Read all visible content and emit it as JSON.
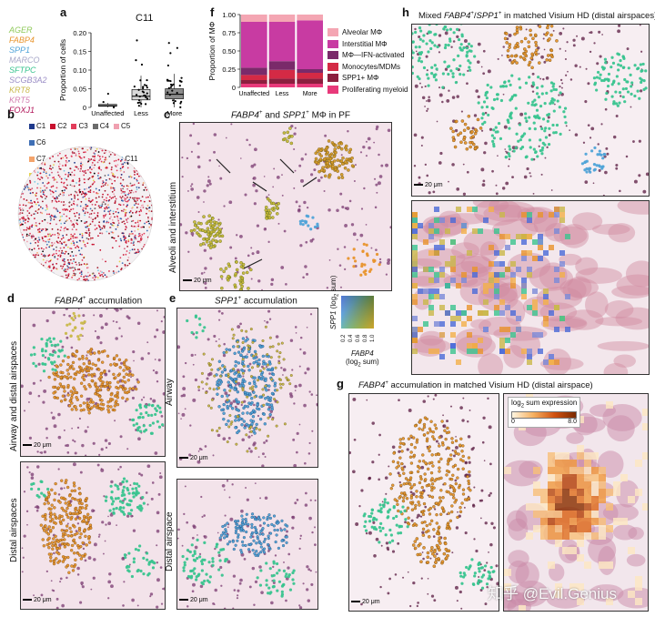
{
  "gene_legend": [
    {
      "name": "AGER",
      "color": "#8fc95a"
    },
    {
      "name": "FABP4",
      "color": "#e8942c"
    },
    {
      "name": "SPP1",
      "color": "#4fa3d8"
    },
    {
      "name": "MARCO",
      "color": "#a8a8c8"
    },
    {
      "name": "SFTPC",
      "color": "#39c48f"
    },
    {
      "name": "SCGB3A2",
      "color": "#9b8ec6"
    },
    {
      "name": "KRT8",
      "color": "#c9b84a"
    },
    {
      "name": "KRT5",
      "color": "#d37fb0"
    },
    {
      "name": "FOXJ1",
      "color": "#b2165a"
    }
  ],
  "panel_a": {
    "label": "a",
    "title": "C11",
    "ylabel": "Proportion of cells",
    "chart_data": {
      "type": "box",
      "categories": [
        "Unaffected",
        "Less",
        "More"
      ],
      "yticks": [
        "0",
        "0.05",
        "0.10",
        "0.15",
        "0.20"
      ],
      "ylim": [
        0,
        0.2
      ],
      "boxes": [
        {
          "category": "Unaffected",
          "q1": 0.003,
          "median": 0.005,
          "q3": 0.008,
          "lower": 0.0,
          "upper": 0.012,
          "color": "#ffffff"
        },
        {
          "category": "Less",
          "q1": 0.02,
          "median": 0.03,
          "q3": 0.048,
          "lower": 0.0,
          "upper": 0.085,
          "color": "#d9d9d9"
        },
        {
          "category": "More",
          "q1": 0.023,
          "median": 0.035,
          "q3": 0.05,
          "lower": 0.0,
          "upper": 0.09,
          "color": "#8c8c8c"
        }
      ]
    }
  },
  "panel_b": {
    "label": "b",
    "clusters": [
      {
        "name": "C1",
        "color": "#1f3a8c"
      },
      {
        "name": "C2",
        "color": "#c8102e"
      },
      {
        "name": "C3",
        "color": "#e23c5a"
      },
      {
        "name": "C4",
        "color": "#6b6b6b"
      },
      {
        "name": "C5",
        "color": "#f0a0b0"
      },
      {
        "name": "C6",
        "color": "#3f6fb5"
      },
      {
        "name": "C7",
        "color": "#f4a46b"
      },
      {
        "name": "C8",
        "color": "#a0182a"
      },
      {
        "name": "C9",
        "color": "#d45a7a"
      },
      {
        "name": "C10",
        "color": "#000000"
      },
      {
        "name": "C11",
        "color": "#7ec8e3"
      },
      {
        "name": "C12",
        "color": "#e8d44d"
      }
    ]
  },
  "panel_c": {
    "label": "c",
    "title_parts": [
      "FABP4",
      "+",
      " and ",
      "SPP1",
      "+",
      " MΦ in PF"
    ],
    "side": "Alveoli and interstitium",
    "scale": "20 μm"
  },
  "panel_d": {
    "label": "d",
    "title_parts": [
      "FABP4",
      "+",
      " accumulation"
    ],
    "side_top": "Airway and distal airspaces",
    "side_bottom": "Distal airspaces",
    "scale_top": "20 μm",
    "scale_bottom": "20 μm"
  },
  "panel_e": {
    "label": "e",
    "title_parts": [
      "SPP1",
      "+",
      " accumulation"
    ],
    "side_top": "Airway",
    "side_bottom": "Distal airspace",
    "scale_top": "20 μm",
    "scale_bottom": "20 μm",
    "colorkey": {
      "ylabel_gene": "SPP1",
      "ylabel_rest": "(log",
      "ylabel_sub": "2",
      "ylabel_end": " sum)",
      "xlabel_gene": "FABP4",
      "xlabel_rest": "(log",
      "xlabel_sub": "2",
      "xlabel_end": " sum)",
      "ticks": [
        "0.2",
        "0.4",
        "0.6",
        "0.8",
        "1.0"
      ]
    }
  },
  "panel_f": {
    "label": "f",
    "ylabel": "Proportion of MΦ",
    "chart_data": {
      "type": "stacked-bar",
      "categories": [
        "Unaffected",
        "Less",
        "More"
      ],
      "yticks": [
        "0",
        "0.25",
        "0.50",
        "0.75",
        "1.00"
      ],
      "ylim": [
        0,
        1
      ],
      "series": [
        {
          "name": "Proliferating myeloid",
          "color": "#e8397a",
          "values": [
            0.05,
            0.05,
            0.05
          ]
        },
        {
          "name": "SPP1+ MΦ",
          "color": "#8c1f3f",
          "values": [
            0.05,
            0.07,
            0.07
          ]
        },
        {
          "name": "Monocytes/MDMs",
          "color": "#d42a45",
          "values": [
            0.07,
            0.12,
            0.08
          ]
        },
        {
          "name": "MΦ—IFN-activated",
          "color": "#7a2a6a",
          "values": [
            0.1,
            0.12,
            0.05
          ]
        },
        {
          "name": "Interstitial MΦ",
          "color": "#c83ba2",
          "values": [
            0.63,
            0.54,
            0.67
          ]
        },
        {
          "name": "Alveolar MΦ",
          "color": "#f4a6b3",
          "values": [
            0.1,
            0.1,
            0.08
          ]
        }
      ]
    },
    "legend": [
      "Alveolar MΦ",
      "Interstitial MΦ",
      "MΦ—IFN-activated",
      "Monocytes/MDMs",
      "SPP1+ MΦ",
      "Proliferating myeloid"
    ]
  },
  "panel_g": {
    "label": "g",
    "title_parts": [
      "FABP4",
      "+",
      " accumulation in matched Visium HD (distal airspace)"
    ],
    "scale": "20 μm",
    "colorbar": {
      "title_pre": "log",
      "title_sub": "2",
      "title_post": " sum expression",
      "min": "0",
      "max": "8.0"
    },
    "watermark": "知乎 @Evil.Genius"
  },
  "panel_h": {
    "label": "h",
    "title_parts": [
      "Mixed ",
      "FABP4",
      "+",
      "/",
      "SPP1",
      "+",
      " in matched Visium HD (distal airspaces)"
    ],
    "scale": "20 μm"
  }
}
